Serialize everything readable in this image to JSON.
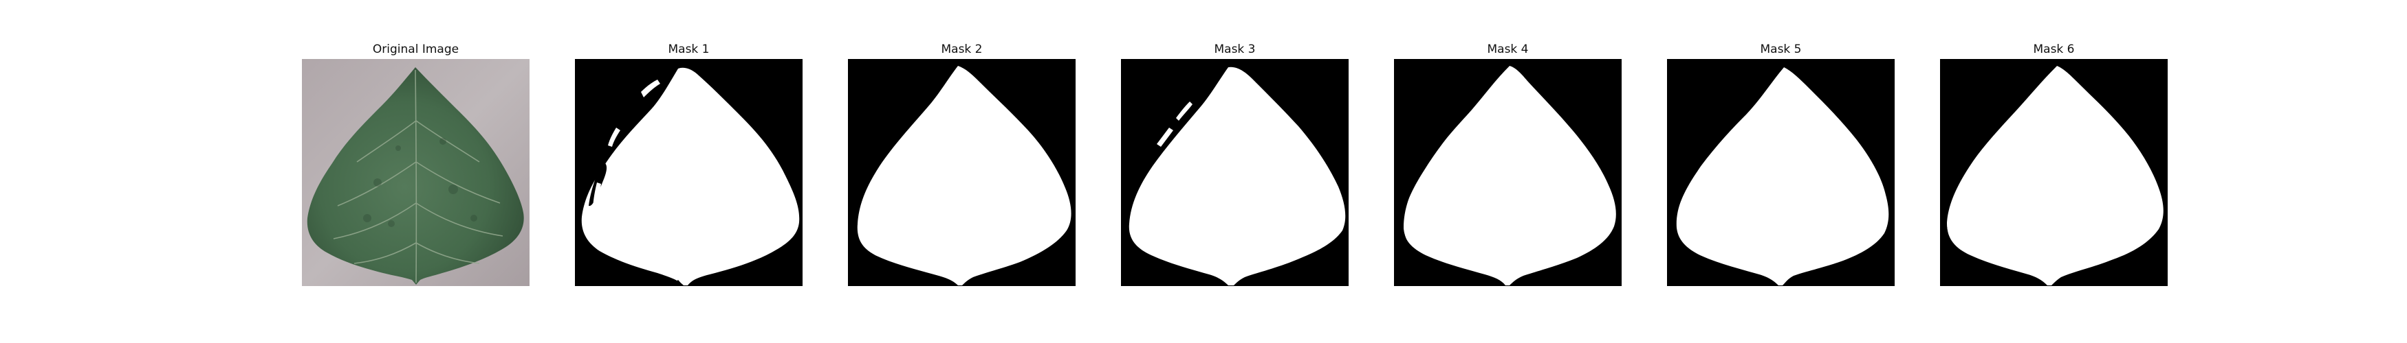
{
  "panels": [
    {
      "title": "Original Image",
      "kind": "photo"
    },
    {
      "title": "Mask 1",
      "kind": "mask",
      "variant": 1
    },
    {
      "title": "Mask 2",
      "kind": "mask",
      "variant": 2
    },
    {
      "title": "Mask 3",
      "kind": "mask",
      "variant": 3
    },
    {
      "title": "Mask 4",
      "kind": "mask",
      "variant": 4
    },
    {
      "title": "Mask 5",
      "kind": "mask",
      "variant": 5
    },
    {
      "title": "Mask 6",
      "kind": "mask",
      "variant": 6
    }
  ],
  "colors": {
    "background": "#ffffff",
    "mask_background": "#000000",
    "mask_foreground": "#ffffff",
    "photo_background": "#b7afb1",
    "leaf_dark": "#3f5f45",
    "leaf_mid": "#5e7f61",
    "leaf_vein": "#9fb29a"
  }
}
